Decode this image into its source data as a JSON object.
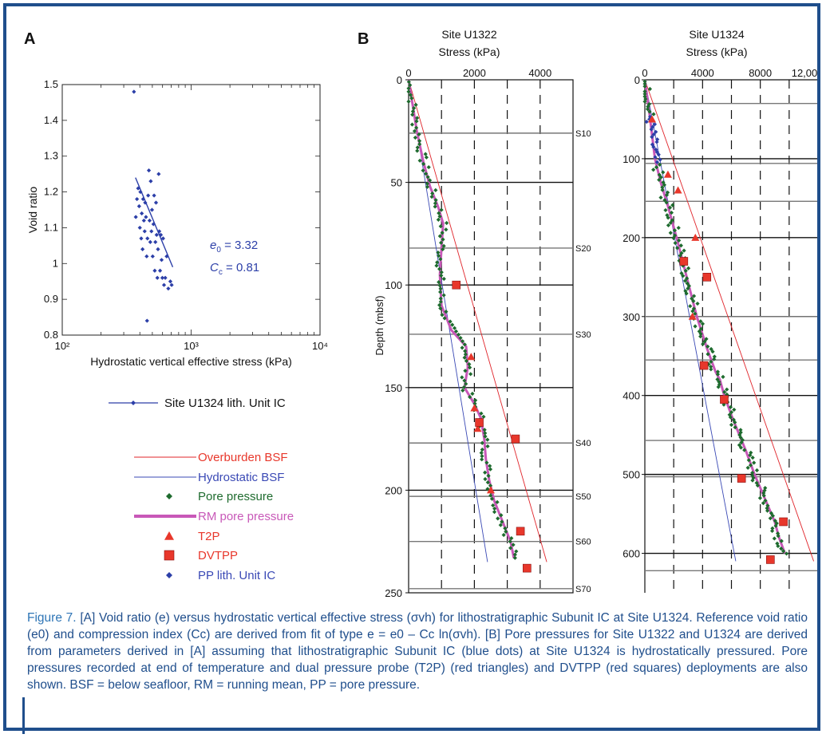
{
  "panel_a_label": "A",
  "panel_b_label": "B",
  "legend": {
    "u1324_unit": "Site U1324 lith. Unit IC",
    "overburden": "Overburden BSF",
    "hydrostatic": "Hydrostatic BSF",
    "pore_pressure": "Pore pressure",
    "rm_pore_pressure": "RM pore pressure",
    "t2p": "T2P",
    "dvtpp": "DVTPP",
    "pp_unit": "PP lith. Unit IC"
  },
  "colors": {
    "frame": "#1f4e8c",
    "void": "#2c3fa8",
    "overburden": "#e0242a",
    "hydrostatic": "#3a49b5",
    "pore": "#1e6b2e",
    "rm": "#c858b8",
    "marker": "#e8372b",
    "unit": "#2c3fa8"
  },
  "caption": {
    "figure_num": "Figure 7.",
    "text": " [A] Void ratio (e) versus hydrostatic vertical effective stress (σvh) for lithostratigraphic Subunit IC at Site U1324. Reference void ratio (e0) and compression index (Cc) are derived from fit of type e = e0 – Cc ln(σvh). [B] Pore pressures for Site U1322 and U1324 are derived from parameters derived in [A] assuming that lithostratigraphic Subunit IC (blue dots) at Site U1324 is hydrostatically pressured. Pore pressures recorded at end of temperature and dual pressure probe (T2P) (red triangles) and DVTPP (red squares) deployments are also shown. BSF = below seafloor, RM = running mean, PP = pore pressure."
  },
  "chart_data": [
    {
      "type": "scatter",
      "panel": "A",
      "title": "",
      "xlabel": "Hydrostatic vertical effective stress (kPa)",
      "ylabel": "Void ratio",
      "xscale": "log",
      "xlim": [
        100,
        10000
      ],
      "ylim": [
        0.8,
        1.5
      ],
      "x_ticks": [
        "10²",
        "10³",
        "10⁴"
      ],
      "y_ticks": [
        "0.8",
        "0.9",
        "1",
        "1.1",
        "1.2",
        "1.3",
        "1.4",
        "1.5"
      ],
      "annotation_e0": "= 3.32",
      "annotation_cc": "= 0.81",
      "annotation_e0_sym": "e",
      "annotation_e0_sub": "0",
      "annotation_cc_sym": "C",
      "annotation_cc_sub": "c",
      "fit_line": [
        [
          370,
          1.24
        ],
        [
          720,
          0.99
        ]
      ],
      "points": [
        [
          360,
          1.48
        ],
        [
          372,
          1.13
        ],
        [
          380,
          1.18
        ],
        [
          388,
          1.21
        ],
        [
          395,
          1.16
        ],
        [
          400,
          1.1
        ],
        [
          404,
          1.2
        ],
        [
          410,
          1.07
        ],
        [
          414,
          1.14
        ],
        [
          420,
          1.04
        ],
        [
          424,
          1.18
        ],
        [
          430,
          1.12
        ],
        [
          436,
          1.09
        ],
        [
          440,
          1.17
        ],
        [
          446,
          1.13
        ],
        [
          452,
          1.02
        ],
        [
          458,
          1.07
        ],
        [
          464,
          1.19
        ],
        [
          470,
          1.26
        ],
        [
          476,
          1.12
        ],
        [
          482,
          1.06
        ],
        [
          486,
          1.23
        ],
        [
          492,
          1.09
        ],
        [
          497,
          1.15
        ],
        [
          503,
          1.02
        ],
        [
          510,
          1.11
        ],
        [
          516,
          1.19
        ],
        [
          522,
          0.98
        ],
        [
          528,
          1.06
        ],
        [
          534,
          1.17
        ],
        [
          540,
          1.08
        ],
        [
          547,
          0.96
        ],
        [
          553,
          1.04
        ],
        [
          560,
          1.25
        ],
        [
          566,
          1.09
        ],
        [
          574,
          0.98
        ],
        [
          582,
          1.08
        ],
        [
          590,
          1.01
        ],
        [
          598,
          0.96
        ],
        [
          606,
          1.07
        ],
        [
          616,
          0.94
        ],
        [
          630,
          0.96
        ],
        [
          646,
          1.02
        ],
        [
          665,
          0.93
        ],
        [
          690,
          0.95
        ],
        [
          706,
          0.94
        ],
        [
          455,
          0.84
        ]
      ]
    },
    {
      "type": "line",
      "panel": "B-left",
      "title": "Site U1322",
      "xlabel": "Stress (kPa)",
      "ylabel": "Depth (mbsf)",
      "xlim": [
        0,
        5000
      ],
      "ylim": [
        0,
        250
      ],
      "x_ticks": [
        "0",
        "2000",
        "4000"
      ],
      "y_ticks": [
        "0",
        "50",
        "100",
        "150",
        "200",
        "250"
      ],
      "unit_markers": [
        [
          "S10",
          26
        ],
        [
          "S20",
          82
        ],
        [
          "S30",
          124
        ],
        [
          "S40",
          177
        ],
        [
          "S50",
          203
        ],
        [
          "S60",
          225
        ],
        [
          "S70",
          248
        ]
      ],
      "overburden": [
        [
          0,
          0
        ],
        [
          4200,
          235
        ]
      ],
      "hydrostatic": [
        [
          0,
          0
        ],
        [
          2400,
          235
        ]
      ],
      "t2p": [
        [
          1900,
          135
        ],
        [
          2000,
          160
        ],
        [
          2100,
          170
        ],
        [
          2500,
          200
        ]
      ],
      "dvtpp": [
        [
          1450,
          100
        ],
        [
          2150,
          167
        ],
        [
          3250,
          175
        ],
        [
          3400,
          220
        ],
        [
          3600,
          238
        ]
      ]
    },
    {
      "type": "line",
      "panel": "B-right",
      "title": "Site U1324",
      "xlabel": "Stress (kPa)",
      "xlim": [
        0,
        12000
      ],
      "ylim": [
        0,
        650
      ],
      "x_ticks": [
        "0",
        "4000",
        "8000",
        "12,00"
      ],
      "y_ticks": [
        "0",
        "100",
        "200",
        "300",
        "400",
        "500",
        "600"
      ],
      "gray_lines": [
        30,
        106,
        154,
        300,
        355,
        457,
        503,
        622
      ],
      "overburden": [
        [
          0,
          0
        ],
        [
          11700,
          610
        ]
      ],
      "hydrostatic": [
        [
          0,
          0
        ],
        [
          6300,
          610
        ]
      ],
      "t2p": [
        [
          500,
          50
        ],
        [
          1600,
          120
        ],
        [
          2300,
          140
        ],
        [
          3500,
          200
        ],
        [
          3300,
          300
        ]
      ],
      "dvtpp": [
        [
          2700,
          230
        ],
        [
          4300,
          250
        ],
        [
          4100,
          362
        ],
        [
          5500,
          405
        ],
        [
          6700,
          505
        ],
        [
          9600,
          560
        ],
        [
          8700,
          608
        ]
      ]
    }
  ]
}
